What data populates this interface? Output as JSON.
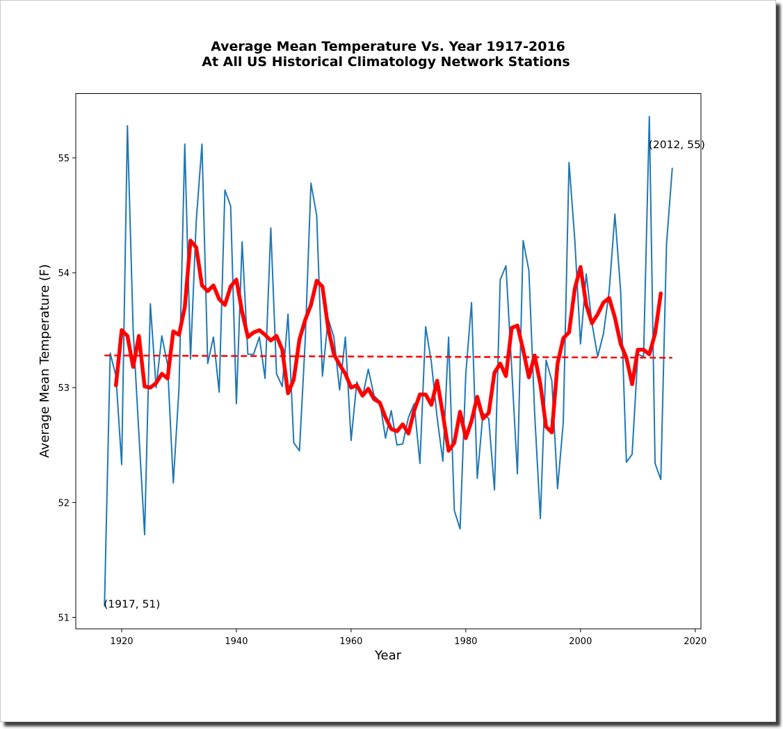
{
  "chart_data": {
    "type": "line",
    "title_line1": "Average Mean Temperature Vs. Year 1917-2016",
    "title_line2": "At All US Historical Climatology Network Stations",
    "xlabel": "Year",
    "ylabel": "Average Mean Temperature (F)",
    "xlim": [
      1912,
      2021
    ],
    "ylim": [
      50.9,
      55.56
    ],
    "xticks": [
      1920,
      1940,
      1960,
      1980,
      2000,
      2020
    ],
    "yticks": [
      51,
      52,
      53,
      54,
      55
    ],
    "grid": false,
    "colors": {
      "annual": "#1f77b4",
      "smoothed": "#ff0000",
      "trend": "#ff0000"
    },
    "series": [
      {
        "key": "annual",
        "x": [
          1917,
          1918,
          1919,
          1920,
          1921,
          1922,
          1923,
          1924,
          1925,
          1926,
          1927,
          1928,
          1929,
          1930,
          1931,
          1932,
          1933,
          1934,
          1935,
          1936,
          1937,
          1938,
          1939,
          1940,
          1941,
          1942,
          1943,
          1944,
          1945,
          1946,
          1947,
          1948,
          1949,
          1950,
          1951,
          1952,
          1953,
          1954,
          1955,
          1956,
          1957,
          1958,
          1959,
          1960,
          1961,
          1962,
          1963,
          1964,
          1965,
          1966,
          1967,
          1968,
          1969,
          1970,
          1971,
          1972,
          1973,
          1974,
          1975,
          1976,
          1977,
          1978,
          1979,
          1980,
          1981,
          1982,
          1983,
          1984,
          1985,
          1986,
          1987,
          1988,
          1989,
          1990,
          1991,
          1992,
          1993,
          1994,
          1995,
          1996,
          1997,
          1998,
          1999,
          2000,
          2001,
          2002,
          2003,
          2004,
          2005,
          2006,
          2007,
          2008,
          2009,
          2010,
          2011,
          2012,
          2013,
          2014,
          2015,
          2016
        ],
        "values": [
          51.1,
          53.3,
          53.1,
          52.33,
          55.28,
          53.5,
          52.6,
          51.72,
          53.73,
          53.0,
          53.45,
          53.2,
          52.17,
          53.0,
          55.12,
          53.25,
          54.45,
          55.12,
          53.21,
          53.44,
          52.96,
          54.72,
          54.58,
          52.86,
          54.27,
          53.29,
          53.29,
          53.44,
          53.08,
          54.39,
          53.12,
          53.01,
          53.64,
          52.52,
          52.45,
          53.41,
          54.78,
          54.5,
          53.1,
          53.6,
          53.44,
          52.98,
          53.44,
          52.54,
          53.05,
          52.92,
          53.16,
          52.93,
          52.88,
          52.56,
          52.8,
          52.5,
          52.51,
          52.74,
          52.86,
          52.34,
          53.53,
          53.22,
          52.74,
          52.36,
          53.44,
          51.93,
          51.77,
          53.12,
          53.74,
          52.21,
          52.78,
          52.73,
          52.11,
          53.94,
          54.06,
          53.17,
          52.25,
          54.28,
          54.02,
          52.78,
          51.86,
          53.24,
          53.06,
          52.12,
          52.7,
          54.96,
          54.29,
          53.38,
          53.99,
          53.56,
          53.27,
          53.47,
          53.84,
          54.51,
          53.84,
          52.35,
          52.42,
          53.29,
          53.27,
          55.36,
          52.34,
          52.2,
          54.25,
          54.91
        ]
      },
      {
        "key": "smoothed",
        "x": [
          1919,
          1920,
          1921,
          1922,
          1923,
          1924,
          1925,
          1926,
          1927,
          1928,
          1929,
          1930,
          1931,
          1932,
          1933,
          1934,
          1935,
          1936,
          1937,
          1938,
          1939,
          1940,
          1941,
          1942,
          1943,
          1944,
          1945,
          1946,
          1947,
          1948,
          1949,
          1950,
          1951,
          1952,
          1953,
          1954,
          1955,
          1956,
          1957,
          1958,
          1959,
          1960,
          1961,
          1962,
          1963,
          1964,
          1965,
          1966,
          1967,
          1968,
          1969,
          1970,
          1971,
          1972,
          1973,
          1974,
          1975,
          1976,
          1977,
          1978,
          1979,
          1980,
          1981,
          1982,
          1983,
          1984,
          1985,
          1986,
          1987,
          1988,
          1989,
          1990,
          1991,
          1992,
          1993,
          1994,
          1995,
          1996,
          1997,
          1998,
          1999,
          2000,
          2001,
          2002,
          2003,
          2004,
          2005,
          2006,
          2007,
          2008,
          2009,
          2010,
          2011,
          2012,
          2013,
          2014
        ],
        "values": [
          53.02,
          53.5,
          53.45,
          53.18,
          53.45,
          53.01,
          53.0,
          53.04,
          53.12,
          53.08,
          53.49,
          53.46,
          53.7,
          54.28,
          54.22,
          53.89,
          53.84,
          53.89,
          53.77,
          53.72,
          53.88,
          53.94,
          53.66,
          53.44,
          53.48,
          53.5,
          53.46,
          53.41,
          53.45,
          53.33,
          52.95,
          53.07,
          53.42,
          53.59,
          53.72,
          53.93,
          53.88,
          53.52,
          53.29,
          53.2,
          53.12,
          53.0,
          53.02,
          52.93,
          52.99,
          52.9,
          52.87,
          52.74,
          52.64,
          52.62,
          52.68,
          52.6,
          52.8,
          52.94,
          52.94,
          52.85,
          53.06,
          52.77,
          52.45,
          52.52,
          52.79,
          52.56,
          52.71,
          52.92,
          52.73,
          52.78,
          53.13,
          53.21,
          53.1,
          53.52,
          53.54,
          53.33,
          53.09,
          53.28,
          53.03,
          52.66,
          52.61,
          53.21,
          53.43,
          53.48,
          53.86,
          54.05,
          53.72,
          53.56,
          53.64,
          53.74,
          53.78,
          53.61,
          53.38,
          53.26,
          53.03,
          53.33,
          53.33,
          53.29,
          53.47,
          53.82
        ]
      },
      {
        "key": "trend",
        "x": [
          1917,
          2016
        ],
        "values": [
          53.28,
          53.26
        ]
      }
    ],
    "annotations": [
      {
        "x": 1917,
        "y": 51,
        "text": "(1917, 51)"
      },
      {
        "x": 2012,
        "y": 55,
        "text": "(2012, 55)"
      }
    ]
  }
}
